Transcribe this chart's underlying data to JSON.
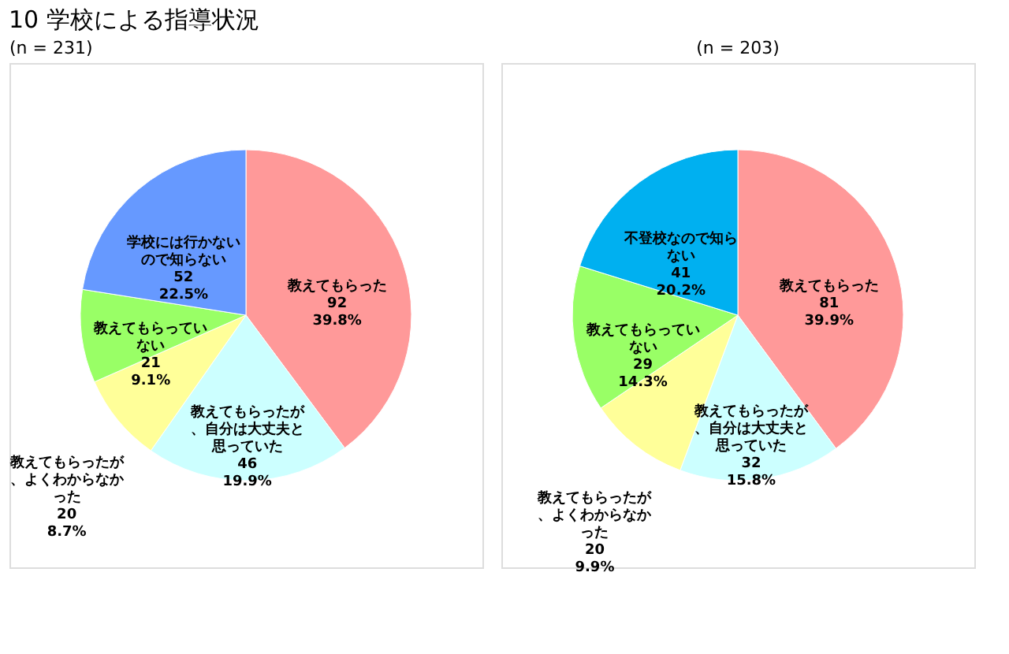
{
  "chart_data": [
    {
      "type": "pie",
      "title": "10  学校による指導状況",
      "subtitle": "(n = 231)",
      "categories": [
        "教えてもらった",
        "教えてもらったが、自分は大丈夫と思っていた",
        "教えてもらったが、よくわからなかった",
        "教えてもらっていない",
        "学校には行かないので知らない"
      ],
      "values": [
        92,
        46,
        20,
        21,
        52
      ],
      "colors": [
        "#ff9999",
        "#ccffff",
        "#ffff99",
        "#99ff66",
        "#6699ff"
      ],
      "value_labels": [
        "92\n39.8%",
        "46\n19.9%",
        "20\n8.7%",
        "21\n9.1%",
        "52\n22.5%"
      ]
    },
    {
      "type": "pie",
      "subtitle": "(n = 203)",
      "categories": [
        "教えてもらった",
        "教えてもらったが、自分は大丈夫と思っていた",
        "教えてもらったが、よくわからなかった",
        "教えてもらっていない",
        "不登校なので知らない"
      ],
      "values": [
        81,
        32,
        20,
        29,
        41
      ],
      "colors": [
        "#ff9999",
        "#ccffff",
        "#ffff99",
        "#99ff66",
        "#00b0f0"
      ],
      "value_labels": [
        "81\n39.9%",
        "32\n15.8%",
        "20\n9.9%",
        "29\n14.3%",
        "41\n20.2%"
      ]
    }
  ]
}
